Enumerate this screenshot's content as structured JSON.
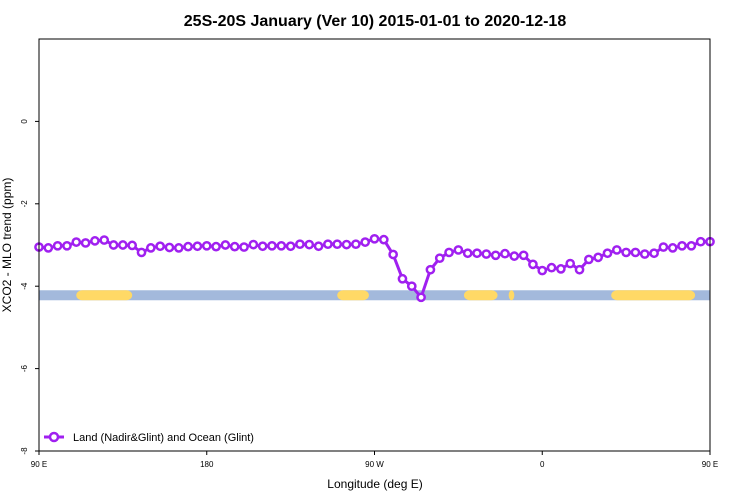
{
  "chart_data": {
    "type": "line",
    "title": "25S-20S January (Ver 10)   2015-01-01 to 2020-12-18",
    "xlabel": "Longitude (deg E)",
    "ylabel": "XCO2 - MLO trend (ppm)",
    "xlim": [
      0,
      360
    ],
    "ylim": [
      -8,
      2
    ],
    "x_ticks": [
      {
        "value": 0,
        "label": "90 E"
      },
      {
        "value": 90,
        "label": "180"
      },
      {
        "value": 180,
        "label": "90 W"
      },
      {
        "value": 270,
        "label": "0"
      },
      {
        "value": 360,
        "label": "90 E"
      }
    ],
    "y_ticks": [
      {
        "value": 0,
        "label": "0"
      },
      {
        "value": -2,
        "label": "-2"
      },
      {
        "value": -4,
        "label": "-4"
      },
      {
        "value": -6,
        "label": "-6"
      },
      {
        "value": -8,
        "label": "-8"
      }
    ],
    "grid": false,
    "legend_position": "bottom-left",
    "colors": {
      "series": "#a020f0",
      "ocean": "#a3b9dc",
      "land": "#ffd966"
    },
    "land_mask": {
      "y": -4.22,
      "ocean_ranges": [
        [
          0,
          360
        ]
      ],
      "land_ranges": [
        [
          20,
          50
        ],
        [
          160,
          177
        ],
        [
          228,
          246
        ],
        [
          252,
          255
        ],
        [
          307,
          352
        ]
      ]
    },
    "series": [
      {
        "name": "Land (Nadir&Glint) and Ocean (Glint)",
        "x": [
          0,
          5,
          10,
          15,
          20,
          25,
          30,
          35,
          40,
          45,
          50,
          55,
          60,
          65,
          70,
          75,
          80,
          85,
          90,
          95,
          100,
          105,
          110,
          115,
          120,
          125,
          130,
          135,
          140,
          145,
          150,
          155,
          160,
          165,
          170,
          175,
          180,
          185,
          190,
          195,
          200,
          205,
          210,
          215,
          220,
          225,
          230,
          235,
          240,
          245,
          250,
          255,
          260,
          265,
          270,
          275,
          280,
          285,
          290,
          295,
          300,
          305,
          310,
          315,
          320,
          325,
          330,
          335,
          340,
          345,
          350,
          355,
          360
        ],
        "values": [
          -3.05,
          -3.07,
          -3.02,
          -3.02,
          -2.93,
          -2.95,
          -2.9,
          -2.88,
          -3.0,
          -3.0,
          -3.01,
          -3.18,
          -3.07,
          -3.03,
          -3.06,
          -3.07,
          -3.04,
          -3.03,
          -3.02,
          -3.04,
          -3.0,
          -3.04,
          -3.05,
          -2.99,
          -3.03,
          -3.02,
          -3.02,
          -3.03,
          -2.98,
          -2.99,
          -3.03,
          -2.98,
          -2.98,
          -2.99,
          -2.98,
          -2.93,
          -2.85,
          -2.87,
          -3.23,
          -3.82,
          -4.0,
          -4.27,
          -3.6,
          -3.32,
          -3.18,
          -3.12,
          -3.2,
          -3.2,
          -3.22,
          -3.25,
          -3.21,
          -3.27,
          -3.25,
          -3.47,
          -3.62,
          -3.55,
          -3.58,
          -3.45,
          -3.6,
          -3.35,
          -3.3,
          -3.2,
          -3.12,
          -3.18,
          -3.18,
          -3.22,
          -3.2,
          -3.05,
          -3.07,
          -3.02,
          -3.02,
          -2.92,
          -2.92
        ]
      }
    ]
  }
}
